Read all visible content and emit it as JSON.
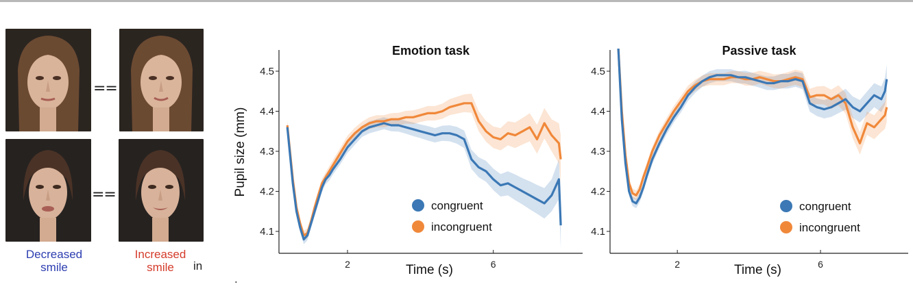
{
  "faces": {
    "equals_symbol": "==",
    "decreased_label": "Decreased smile",
    "increased_label": "Increased smile",
    "stray_text": "in",
    "period": "."
  },
  "colors": {
    "congruent": "#3b78b5",
    "incongruent": "#f0883a",
    "decreased_text": "#2c3db0",
    "increased_text": "#d43b2a"
  },
  "chart_data": [
    {
      "type": "line",
      "title": "Emotion task",
      "xlabel": "Time (s)",
      "ylabel": "Pupil size (mm)",
      "xlim": [
        0,
        8.1
      ],
      "ylim": [
        4.05,
        4.55
      ],
      "xticks": [
        2,
        6
      ],
      "yticks": [
        4.1,
        4.2,
        4.3,
        4.4,
        4.5
      ],
      "legend": "bottom-right",
      "x": [
        0.35,
        0.5,
        0.6,
        0.7,
        0.8,
        0.9,
        1.0,
        1.1,
        1.2,
        1.3,
        1.4,
        1.5,
        1.6,
        1.8,
        2.0,
        2.2,
        2.4,
        2.6,
        2.8,
        3.0,
        3.2,
        3.4,
        3.6,
        3.8,
        4.0,
        4.2,
        4.4,
        4.6,
        4.8,
        5.0,
        5.2,
        5.4,
        5.6,
        5.8,
        6.0,
        6.2,
        6.4,
        6.6,
        6.8,
        7.0,
        7.2,
        7.4,
        7.6,
        7.7,
        7.8,
        7.85
      ],
      "series": [
        {
          "name": "congruent",
          "values": [
            4.36,
            4.22,
            4.15,
            4.11,
            4.08,
            4.09,
            4.12,
            4.15,
            4.18,
            4.21,
            4.23,
            4.24,
            4.255,
            4.28,
            4.31,
            4.33,
            4.35,
            4.36,
            4.365,
            4.37,
            4.365,
            4.365,
            4.36,
            4.355,
            4.35,
            4.345,
            4.34,
            4.345,
            4.345,
            4.34,
            4.33,
            4.28,
            4.26,
            4.25,
            4.23,
            4.215,
            4.22,
            4.21,
            4.2,
            4.19,
            4.18,
            4.17,
            4.19,
            4.21,
            4.23,
            4.115
          ],
          "err": [
            0.012,
            0.012,
            0.012,
            0.012,
            0.012,
            0.012,
            0.012,
            0.012,
            0.012,
            0.012,
            0.012,
            0.013,
            0.013,
            0.013,
            0.014,
            0.014,
            0.014,
            0.015,
            0.015,
            0.015,
            0.015,
            0.016,
            0.016,
            0.017,
            0.017,
            0.018,
            0.018,
            0.019,
            0.02,
            0.021,
            0.022,
            0.024,
            0.025,
            0.026,
            0.027,
            0.028,
            0.03,
            0.032,
            0.033,
            0.035,
            0.036,
            0.038,
            0.04,
            0.045,
            0.05,
            0.06
          ]
        },
        {
          "name": "incongruent",
          "values": [
            4.365,
            4.23,
            4.16,
            4.12,
            4.09,
            4.095,
            4.125,
            4.16,
            4.19,
            4.22,
            4.235,
            4.25,
            4.265,
            4.295,
            4.325,
            4.345,
            4.36,
            4.37,
            4.375,
            4.375,
            4.38,
            4.38,
            4.385,
            4.385,
            4.39,
            4.395,
            4.395,
            4.4,
            4.41,
            4.415,
            4.42,
            4.42,
            4.375,
            4.35,
            4.335,
            4.33,
            4.345,
            4.34,
            4.35,
            4.36,
            4.33,
            4.37,
            4.34,
            4.33,
            4.32,
            4.28
          ],
          "err": [
            0.012,
            0.012,
            0.012,
            0.012,
            0.012,
            0.012,
            0.012,
            0.012,
            0.012,
            0.012,
            0.012,
            0.013,
            0.013,
            0.013,
            0.014,
            0.014,
            0.014,
            0.015,
            0.015,
            0.015,
            0.015,
            0.016,
            0.016,
            0.017,
            0.017,
            0.018,
            0.018,
            0.019,
            0.02,
            0.021,
            0.022,
            0.024,
            0.025,
            0.026,
            0.027,
            0.028,
            0.03,
            0.032,
            0.033,
            0.035,
            0.036,
            0.038,
            0.04,
            0.045,
            0.05,
            0.06
          ]
        }
      ]
    },
    {
      "type": "line",
      "title": "Passive task",
      "xlabel": "Time (s)",
      "ylabel": "",
      "xlim": [
        0,
        8.1
      ],
      "ylim": [
        4.05,
        4.55
      ],
      "xticks": [
        2,
        6
      ],
      "yticks": [
        4.1,
        4.2,
        4.3,
        4.4,
        4.5
      ],
      "legend": "bottom-right",
      "x": [
        0.35,
        0.45,
        0.55,
        0.65,
        0.75,
        0.85,
        0.95,
        1.05,
        1.15,
        1.3,
        1.5,
        1.7,
        1.9,
        2.1,
        2.3,
        2.5,
        2.7,
        2.9,
        3.1,
        3.3,
        3.5,
        3.7,
        3.9,
        4.1,
        4.3,
        4.5,
        4.7,
        4.9,
        5.1,
        5.3,
        5.5,
        5.7,
        5.9,
        6.1,
        6.3,
        6.5,
        6.7,
        6.9,
        7.1,
        7.3,
        7.5,
        7.7,
        7.8,
        7.85
      ],
      "series": [
        {
          "name": "congruent",
          "values": [
            4.56,
            4.38,
            4.27,
            4.2,
            4.175,
            4.17,
            4.185,
            4.21,
            4.24,
            4.28,
            4.32,
            4.355,
            4.385,
            4.41,
            4.44,
            4.46,
            4.475,
            4.485,
            4.49,
            4.49,
            4.49,
            4.485,
            4.485,
            4.48,
            4.475,
            4.47,
            4.47,
            4.475,
            4.475,
            4.48,
            4.475,
            4.42,
            4.41,
            4.405,
            4.41,
            4.42,
            4.43,
            4.41,
            4.4,
            4.42,
            4.44,
            4.43,
            4.45,
            4.48
          ],
          "err": [
            0.012,
            0.012,
            0.012,
            0.012,
            0.012,
            0.012,
            0.012,
            0.012,
            0.012,
            0.012,
            0.012,
            0.013,
            0.013,
            0.013,
            0.014,
            0.014,
            0.014,
            0.015,
            0.015,
            0.015,
            0.015,
            0.015,
            0.016,
            0.016,
            0.016,
            0.017,
            0.017,
            0.018,
            0.018,
            0.019,
            0.02,
            0.021,
            0.022,
            0.023,
            0.024,
            0.025,
            0.026,
            0.027,
            0.028,
            0.029,
            0.03,
            0.032,
            0.034,
            0.036
          ]
        },
        {
          "name": "incongruent",
          "values": [
            4.56,
            4.4,
            4.29,
            4.22,
            4.195,
            4.19,
            4.205,
            4.235,
            4.26,
            4.3,
            4.34,
            4.37,
            4.4,
            4.425,
            4.45,
            4.465,
            4.475,
            4.48,
            4.48,
            4.48,
            4.485,
            4.485,
            4.48,
            4.48,
            4.485,
            4.48,
            4.475,
            4.475,
            4.48,
            4.485,
            4.48,
            4.435,
            4.44,
            4.44,
            4.43,
            4.44,
            4.42,
            4.36,
            4.32,
            4.37,
            4.36,
            4.38,
            4.39,
            4.41
          ],
          "err": [
            0.012,
            0.012,
            0.012,
            0.012,
            0.012,
            0.012,
            0.012,
            0.012,
            0.012,
            0.012,
            0.012,
            0.013,
            0.013,
            0.013,
            0.014,
            0.014,
            0.014,
            0.015,
            0.015,
            0.015,
            0.015,
            0.015,
            0.016,
            0.016,
            0.016,
            0.017,
            0.017,
            0.018,
            0.018,
            0.019,
            0.02,
            0.021,
            0.022,
            0.023,
            0.024,
            0.025,
            0.026,
            0.027,
            0.028,
            0.029,
            0.03,
            0.032,
            0.034,
            0.036
          ]
        }
      ]
    }
  ]
}
